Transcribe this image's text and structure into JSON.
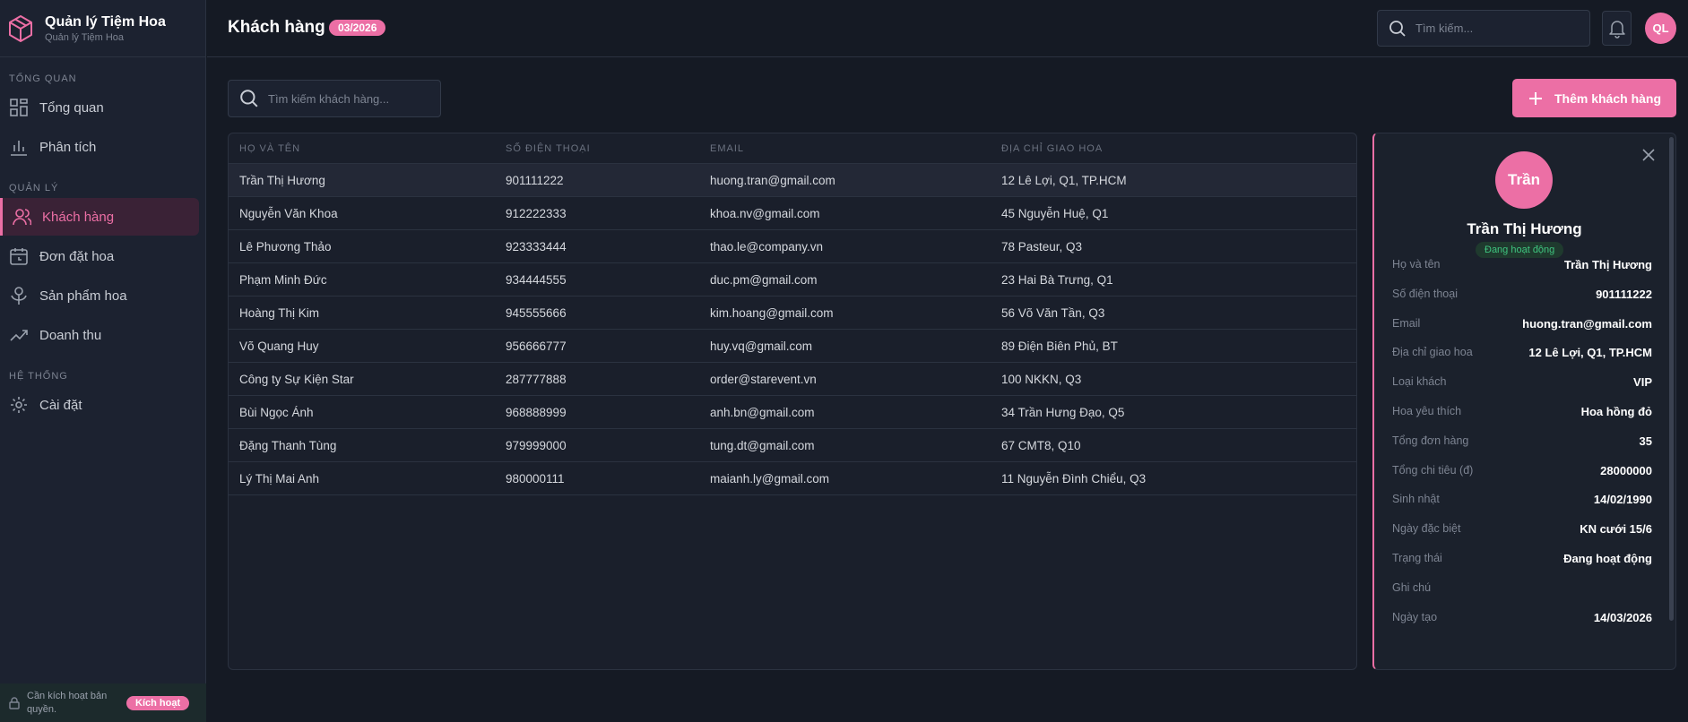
{
  "sidebar": {
    "brand": {
      "title": "Quản lý Tiệm Hoa",
      "subtitle": "Quản lý Tiệm Hoa"
    },
    "sections": [
      {
        "title": "TỔNG QUAN",
        "items": [
          "Tổng quan",
          "Phân tích"
        ]
      },
      {
        "title": "QUẢN LÝ",
        "items": [
          "Khách hàng",
          "Đơn đặt hoa",
          "Sản phẩm hoa",
          "Doanh thu"
        ]
      },
      {
        "title": "HỆ THỐNG",
        "items": [
          "Cài đặt"
        ]
      }
    ],
    "license": {
      "text": "Cần kích hoạt bản quyền.",
      "button": "Kích hoạt"
    }
  },
  "header": {
    "title": "Khách hàng",
    "period": "03/2026",
    "search_placeholder": "Tìm kiếm...",
    "avatar": "QL"
  },
  "toolbar": {
    "search_placeholder": "Tìm kiếm khách hàng...",
    "add_button": "Thêm khách hàng"
  },
  "table": {
    "columns": [
      "HỌ VÀ TÊN",
      "SỐ ĐIỆN THOẠI",
      "EMAIL",
      "ĐỊA CHỈ GIAO HOA"
    ],
    "rows": [
      [
        "Trần Thị Hương",
        "901111222",
        "huong.tran@gmail.com",
        "12 Lê Lợi, Q1, TP.HCM"
      ],
      [
        "Nguyễn Văn Khoa",
        "912222333",
        "khoa.nv@gmail.com",
        "45 Nguyễn Huệ, Q1"
      ],
      [
        "Lê Phương Thảo",
        "923333444",
        "thao.le@company.vn",
        "78 Pasteur, Q3"
      ],
      [
        "Phạm Minh Đức",
        "934444555",
        "duc.pm@gmail.com",
        "23 Hai Bà Trưng, Q1"
      ],
      [
        "Hoàng Thị Kim",
        "945555666",
        "kim.hoang@gmail.com",
        "56 Võ Văn Tần, Q3"
      ],
      [
        "Võ Quang Huy",
        "956666777",
        "huy.vq@gmail.com",
        "89 Điện Biên Phủ, BT"
      ],
      [
        "Công ty Sự Kiện Star",
        "287777888",
        "order@starevent.vn",
        "100 NKKN, Q3"
      ],
      [
        "Bùi Ngọc Ánh",
        "968888999",
        "anh.bn@gmail.com",
        "34 Trần Hưng Đạo, Q5"
      ],
      [
        "Đặng Thanh Tùng",
        "979999000",
        "tung.dt@gmail.com",
        "67 CMT8, Q10"
      ],
      [
        "Lý Thị Mai Anh",
        "980000111",
        "maianh.ly@gmail.com",
        "11 Nguyễn Đình Chiểu, Q3"
      ]
    ]
  },
  "detail": {
    "avatar": "Trần",
    "name": "Trần Thị Hương",
    "status": "Đang hoạt động",
    "fields": [
      {
        "label": "Họ và tên",
        "value": "Trần Thị Hương"
      },
      {
        "label": "Số điện thoại",
        "value": "901111222"
      },
      {
        "label": "Email",
        "value": "huong.tran@gmail.com"
      },
      {
        "label": "Địa chỉ giao hoa",
        "value": "12 Lê Lợi, Q1, TP.HCM"
      },
      {
        "label": "Loại khách",
        "value": "VIP"
      },
      {
        "label": "Hoa yêu thích",
        "value": "Hoa hồng đỏ"
      },
      {
        "label": "Tổng đơn hàng",
        "value": "35"
      },
      {
        "label": "Tổng chi tiêu (đ)",
        "value": "28000000"
      },
      {
        "label": "Sinh nhật",
        "value": "14/02/1990"
      },
      {
        "label": "Ngày đặc biệt",
        "value": "KN cưới 15/6"
      },
      {
        "label": "Trạng thái",
        "value": "Đang hoạt động"
      },
      {
        "label": "Ghi chú"
      },
      {
        "label": "Ngày tạo",
        "value": "14/03/2026"
      }
    ]
  }
}
